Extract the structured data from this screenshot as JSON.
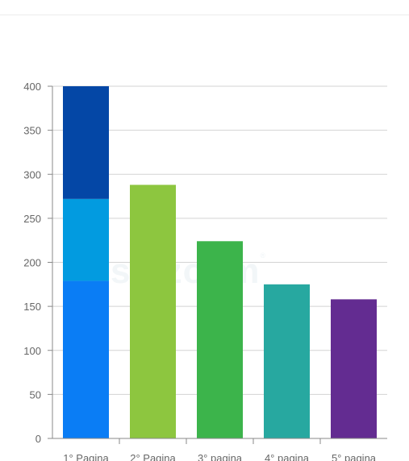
{
  "header": {
    "text": "",
    "accent_text": "",
    "colors": {
      "accent": "#f0a050",
      "text": "#b5b5b5",
      "border": "#ececec"
    }
  },
  "watermark": {
    "text": "sp zoom",
    "mark": "®"
  },
  "chart_data": {
    "type": "bar",
    "title": "",
    "xlabel": "",
    "ylabel": "",
    "ylim": [
      0,
      400
    ],
    "yticks": [
      0,
      50,
      100,
      150,
      200,
      250,
      300,
      350,
      400
    ],
    "grid": true,
    "categories": [
      "1° Pagina",
      "2° Pagina",
      "3° pagina",
      "4° pagina",
      "5° pagina"
    ],
    "bars": [
      {
        "segments": [
          {
            "value": 179,
            "color": "#0a7df5"
          },
          {
            "value": 93,
            "color": "#029be0"
          },
          {
            "value": 128,
            "color": "#0447a6"
          }
        ]
      },
      {
        "segments": [
          {
            "value": 288,
            "color": "#8dc63f"
          }
        ]
      },
      {
        "segments": [
          {
            "value": 224,
            "color": "#3cb44b"
          }
        ]
      },
      {
        "segments": [
          {
            "value": 175,
            "color": "#27a8a0"
          }
        ]
      },
      {
        "segments": [
          {
            "value": 158,
            "color": "#632c91"
          }
        ]
      }
    ],
    "colors": {
      "grid": "#d3d3d3",
      "axis": "#888888",
      "tick_label": "#666666"
    }
  }
}
